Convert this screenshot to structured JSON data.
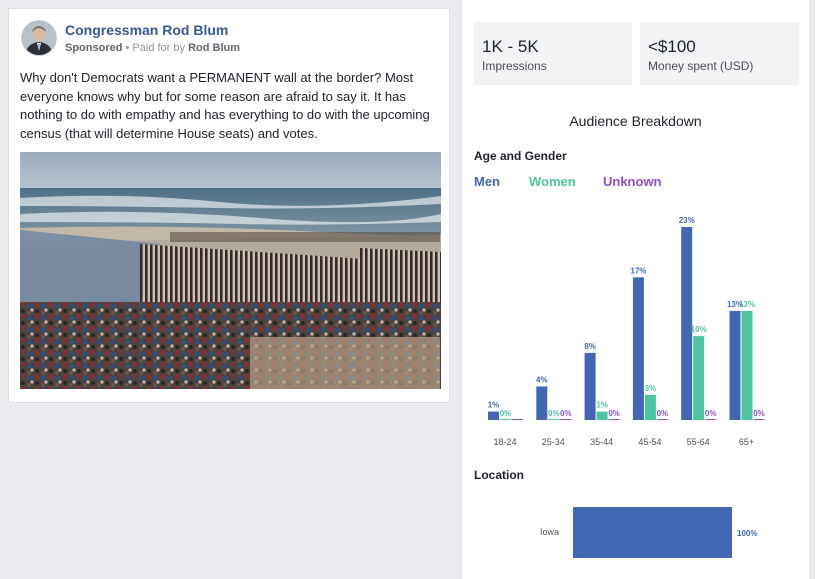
{
  "ad": {
    "advertiser": "Congressman Rod Blum",
    "sponsored": "Sponsored",
    "paid_for_prefix": "• Paid for by",
    "payer": "Rod Blum",
    "body_text": "Why don't Democrats want a PERMANENT wall at the border? Most everyone knows why but for some reason are afraid to say it. It has nothing to do with empathy and has everything to do with the upcoming census (that will determine House seats) and votes."
  },
  "stats": {
    "impressions_value": "1K - 5K",
    "impressions_label": "Impressions",
    "spend_value": "<$100",
    "spend_label": "Money spent (USD)"
  },
  "breakdown": {
    "title": "Audience Breakdown",
    "age_gender_heading": "Age and Gender",
    "location_heading": "Location",
    "legend": [
      {
        "label": "Men",
        "color": "#4267b2"
      },
      {
        "label": "Women",
        "color": "#4bc4a0"
      },
      {
        "label": "Unknown",
        "color": "#8c4ec2"
      }
    ]
  },
  "chart_data": [
    {
      "type": "bar",
      "categories": [
        "18-24",
        "25-34",
        "35-44",
        "45-54",
        "55-64",
        "65+"
      ],
      "series": [
        {
          "name": "Men",
          "values": [
            1,
            4,
            8,
            17,
            23,
            13
          ],
          "labels": [
            "1%",
            "4%",
            "8%",
            "17%",
            "23%",
            "13%"
          ],
          "color": "#4267b2"
        },
        {
          "name": "Women",
          "values": [
            0,
            0,
            1,
            3,
            10,
            13
          ],
          "labels": [
            "0%",
            "0%",
            "1%",
            "3%",
            "10%",
            "13%"
          ],
          "color": "#4bc4a0"
        },
        {
          "name": "Unknown",
          "values": [
            0,
            0,
            0,
            0,
            0,
            0
          ],
          "labels": [
            "",
            "0%",
            "0%",
            "0%",
            "0%",
            "0%"
          ],
          "color": "#8c4ec2"
        }
      ],
      "title": "",
      "xlabel": "",
      "ylabel": "",
      "ylim": [
        0,
        23
      ],
      "grid": false
    },
    {
      "type": "bar",
      "orientation": "horizontal",
      "categories": [
        "Iowa"
      ],
      "values": [
        100
      ],
      "labels": [
        "100%"
      ],
      "color": "#4267b2",
      "xlim": [
        0,
        100
      ]
    }
  ]
}
